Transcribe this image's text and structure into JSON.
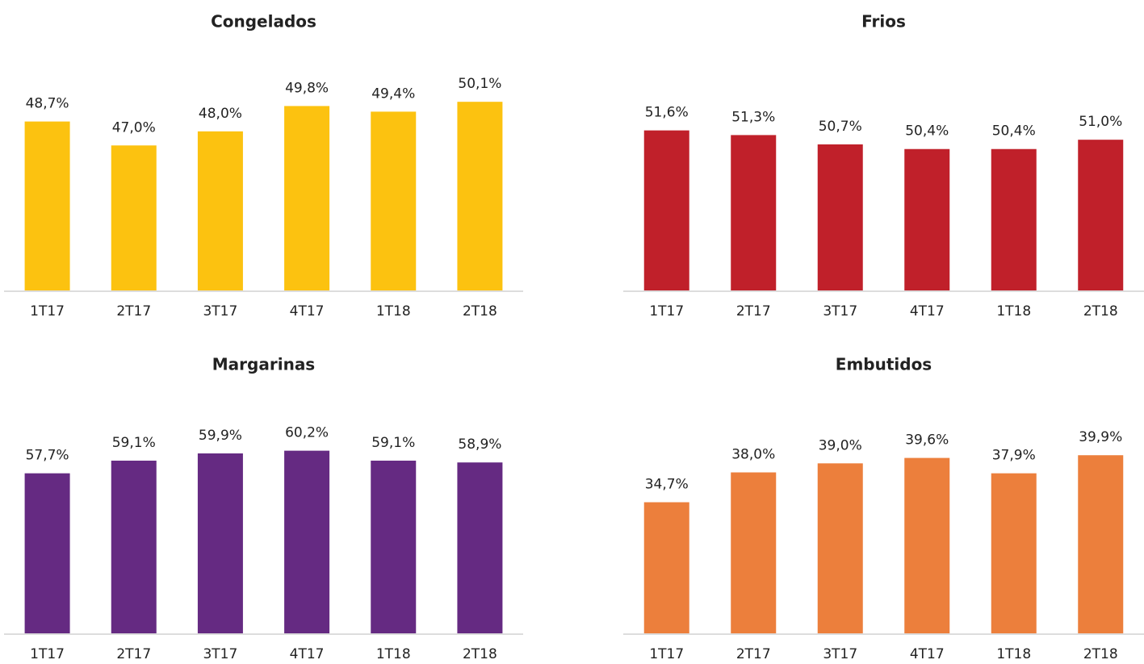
{
  "chart_data": [
    {
      "type": "bar",
      "title": "Congelados",
      "categories": [
        "1T17",
        "2T17",
        "3T17",
        "4T17",
        "1T18",
        "2T18"
      ],
      "values": [
        48.7,
        47.0,
        48.0,
        49.8,
        49.4,
        50.1
      ],
      "value_labels": [
        "48,7%",
        "47,0%",
        "48,0%",
        "49,8%",
        "49,4%",
        "50,1%"
      ],
      "color": "#fcc210",
      "ylim": [
        36.7,
        51.6
      ]
    },
    {
      "type": "bar",
      "title": "Frios",
      "categories": [
        "1T17",
        "2T17",
        "3T17",
        "4T17",
        "1T18",
        "2T18"
      ],
      "values": [
        51.6,
        51.3,
        50.7,
        50.4,
        50.4,
        51.0
      ],
      "value_labels": [
        "51,6%",
        "51,3%",
        "50,7%",
        "50,4%",
        "50,4%",
        "51,0%"
      ],
      "color": "#c0202a",
      "ylim": [
        41.3,
        54.8
      ]
    },
    {
      "type": "bar",
      "title": "Margarinas",
      "categories": [
        "1T17",
        "2T17",
        "3T17",
        "4T17",
        "1T18",
        "2T18"
      ],
      "values": [
        57.7,
        59.1,
        59.9,
        60.2,
        59.1,
        58.9
      ],
      "value_labels": [
        "57,7%",
        "59,1%",
        "59,9%",
        "60,2%",
        "59,1%",
        "58,9%"
      ],
      "color": "#652a82",
      "ylim": [
        40.0,
        63.2
      ]
    },
    {
      "type": "bar",
      "title": "Embutidos",
      "categories": [
        "1T17",
        "2T17",
        "3T17",
        "4T17",
        "1T18",
        "2T18"
      ],
      "values": [
        34.7,
        38.0,
        39.0,
        39.6,
        37.9,
        39.9
      ],
      "value_labels": [
        "34,7%",
        "38,0%",
        "39,0%",
        "39,6%",
        "37,9%",
        "39,9%"
      ],
      "color": "#ec7f3c",
      "ylim": [
        20.2,
        43.4
      ]
    }
  ]
}
